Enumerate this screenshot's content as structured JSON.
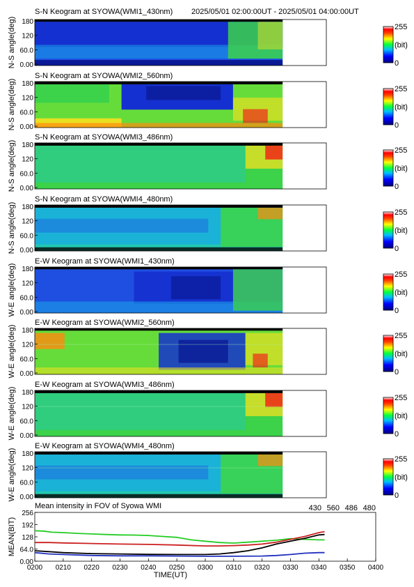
{
  "header": {
    "time_range": "2025/05/01 02:00:00UT - 2025/05/01 04:00:00UT"
  },
  "colorbar": {
    "max_label": "255",
    "unit_label": "(bit)",
    "min_label": "0"
  },
  "panels": [
    {
      "title": "S-N Keogram at SYOWA(WMI1_430nm)",
      "ylabel": "N-S angle(deg)",
      "ticks": [
        "180",
        "120",
        "60.0",
        "0.00"
      ],
      "kind": "sn430"
    },
    {
      "title": "S-N Keogram at SYOWA(WMI2_560nm)",
      "ylabel": "N-S angle(deg)",
      "ticks": [
        "180",
        "120",
        "60.0",
        "0.00"
      ],
      "kind": "sn560"
    },
    {
      "title": "S-N Keogram at SYOWA(WMI3_486nm)",
      "ylabel": "N-S angle(deg)",
      "ticks": [
        "180",
        "120",
        "60.0",
        "0.00"
      ],
      "kind": "sn486"
    },
    {
      "title": "S-N Keogram at SYOWA(WMI4_480nm)",
      "ylabel": "N-S angle(deg)",
      "ticks": [
        "180",
        "120",
        "60.0",
        "0.00"
      ],
      "kind": "sn480"
    },
    {
      "title": "E-W Keogram at SYOWA(WMI1_430nm)",
      "ylabel": "W-E angle(deg)",
      "ticks": [
        "180",
        "120",
        "60.0",
        "0.00"
      ],
      "kind": "ew430"
    },
    {
      "title": "E-W Keogram at SYOWA(WMI2_560nm)",
      "ylabel": "W-E angle(deg)",
      "ticks": [
        "180",
        "120",
        "60.0",
        "0.00"
      ],
      "kind": "ew560"
    },
    {
      "title": "E-W Keogram at SYOWA(WMI3_486nm)",
      "ylabel": "W-E angle(deg)",
      "ticks": [
        "180",
        "120",
        "60.0",
        "0.00"
      ],
      "kind": "ew486"
    },
    {
      "title": "E-W Keogram at SYOWA(WMI4_480nm)",
      "ylabel": "W-E angle(deg)",
      "ticks": [
        "180",
        "120",
        "60.0",
        "0.00"
      ],
      "kind": "ew480"
    }
  ],
  "chart_data": {
    "type": "line",
    "title": "Mean intensity in FOV of Syowa WMI",
    "xlabel": "TIME(UT)",
    "ylabel": "MEAN(BIT)",
    "x_ticks": [
      "0200",
      "0210",
      "0220",
      "0230",
      "0240",
      "0250",
      "0300",
      "0310",
      "0320",
      "0330",
      "0340",
      "0350",
      "0400"
    ],
    "y_ticks": [
      "256",
      "192",
      "128",
      "64.0",
      "0.00"
    ],
    "xlim": [
      0,
      120
    ],
    "ylim": [
      0,
      256
    ],
    "data_end_minute": 102,
    "series": [
      {
        "name": "430",
        "color": "#1f2fbf",
        "x": [
          0,
          5,
          10,
          20,
          30,
          40,
          50,
          60,
          70,
          80,
          85,
          90,
          95,
          100,
          102
        ],
        "values": [
          45,
          38,
          35,
          30,
          28,
          28,
          27,
          26,
          26,
          27,
          30,
          35,
          42,
          45,
          45
        ]
      },
      {
        "name": "560",
        "color": "#22cc22",
        "x": [
          0,
          3,
          6,
          10,
          15,
          20,
          25,
          30,
          35,
          40,
          45,
          50,
          55,
          60,
          65,
          70,
          75,
          80,
          85,
          90,
          95,
          100,
          102
        ],
        "values": [
          160,
          158,
          152,
          150,
          146,
          143,
          140,
          138,
          137,
          135,
          130,
          125,
          112,
          105,
          98,
          95,
          100,
          105,
          110,
          118,
          115,
          112,
          112
        ]
      },
      {
        "name": "486",
        "color": "#cc1f1f",
        "x": [
          0,
          5,
          10,
          20,
          30,
          40,
          50,
          60,
          65,
          70,
          75,
          80,
          85,
          90,
          95,
          100,
          102
        ],
        "values": [
          98,
          98,
          96,
          93,
          90,
          88,
          85,
          80,
          80,
          82,
          85,
          90,
          100,
          115,
          130,
          150,
          155
        ]
      },
      {
        "name": "480",
        "color": "#000000",
        "x": [
          0,
          5,
          10,
          20,
          30,
          40,
          50,
          60,
          65,
          70,
          75,
          80,
          85,
          90,
          95,
          100,
          102
        ],
        "values": [
          55,
          50,
          45,
          40,
          38,
          36,
          35,
          35,
          38,
          45,
          55,
          70,
          90,
          105,
          120,
          138,
          140
        ]
      }
    ]
  }
}
